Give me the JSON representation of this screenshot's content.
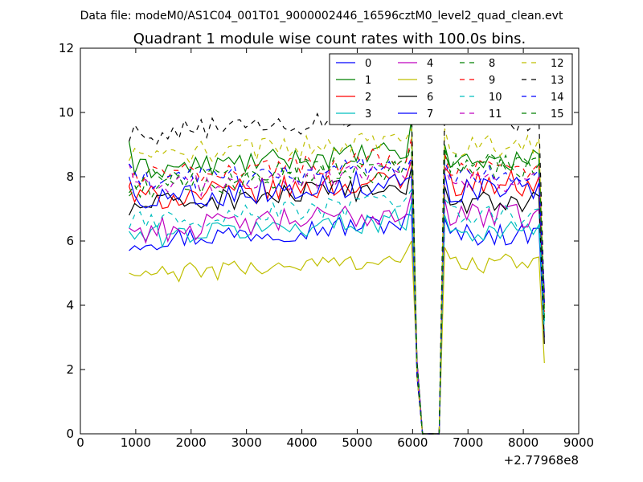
{
  "chart_data": {
    "type": "line",
    "suptitle": "Data file: modeM0/AS1C04_001T01_9000002446_16596cztM0_level2_quad_clean.evt",
    "title": "Quadrant 1 module wise count rates with 100.0s bins.",
    "xlabel": "",
    "ylabel": "",
    "x_offset_label": "+2.77968e8",
    "xlim": [
      0,
      9000
    ],
    "ylim": [
      0,
      12
    ],
    "xticks": [
      0,
      1000,
      2000,
      3000,
      4000,
      5000,
      6000,
      7000,
      8000,
      9000
    ],
    "yticks": [
      0,
      2,
      4,
      6,
      8,
      10,
      12
    ],
    "xtick_labels": [
      "0",
      "1000",
      "2000",
      "3000",
      "4000",
      "5000",
      "6000",
      "7000",
      "8000",
      "9000"
    ],
    "ytick_labels": [
      "0",
      "2",
      "4",
      "6",
      "8",
      "10",
      "12"
    ],
    "grid": false,
    "legend_position": "top-right",
    "x_start": 880,
    "x_step": 100,
    "gap": {
      "drop_x": 6080,
      "zero_start_x": 6180,
      "zero_end_x": 6480,
      "rise_x": 6580
    },
    "x_end": 8380,
    "series": [
      {
        "name": "0",
        "color": "#0000ff",
        "dash": "solid",
        "mean_before": 6.3,
        "amp": 0.35,
        "end_before": 6.8,
        "first": 5.7,
        "mean_after": 6.2,
        "last": 3.0
      },
      {
        "name": "1",
        "color": "#008000",
        "dash": "solid",
        "mean_before": 8.5,
        "amp": 0.35,
        "end_before": 9.8,
        "first": 9.1,
        "mean_after": 8.5,
        "last": 3.5
      },
      {
        "name": "2",
        "color": "#ff0000",
        "dash": "solid",
        "mean_before": 7.6,
        "amp": 0.4,
        "end_before": 8.5,
        "first": 7.7,
        "mean_after": 7.8,
        "last": 4.0
      },
      {
        "name": "3",
        "color": "#00bfbf",
        "dash": "solid",
        "mean_before": 6.4,
        "amp": 0.35,
        "end_before": 7.2,
        "first": 6.3,
        "mean_after": 6.3,
        "last": 3.5
      },
      {
        "name": "4",
        "color": "#bf00bf",
        "dash": "solid",
        "mean_before": 6.6,
        "amp": 0.4,
        "end_before": 7.5,
        "first": 6.4,
        "mean_after": 6.8,
        "last": 4.0
      },
      {
        "name": "5",
        "color": "#bfbf00",
        "dash": "solid",
        "mean_before": 5.2,
        "amp": 0.3,
        "end_before": 6.0,
        "first": 5.0,
        "mean_after": 5.3,
        "last": 2.2
      },
      {
        "name": "6",
        "color": "#000000",
        "dash": "solid",
        "mean_before": 7.4,
        "amp": 0.35,
        "end_before": 8.3,
        "first": 6.8,
        "mean_after": 7.2,
        "last": 2.8
      },
      {
        "name": "7",
        "color": "#0000ff",
        "dash": "solid",
        "mean_before": 7.6,
        "amp": 0.4,
        "end_before": 8.0,
        "first": 8.0,
        "mean_after": 7.6,
        "last": 4.4
      },
      {
        "name": "8",
        "color": "#008000",
        "dash": "dashed",
        "mean_before": 7.9,
        "amp": 0.35,
        "end_before": 9.0,
        "first": 7.5,
        "mean_after": 8.2,
        "last": 3.6
      },
      {
        "name": "9",
        "color": "#ff0000",
        "dash": "dashed",
        "mean_before": 8.3,
        "amp": 0.35,
        "end_before": 9.2,
        "first": 7.7,
        "mean_after": 8.2,
        "last": 3.8
      },
      {
        "name": "10",
        "color": "#00bfbf",
        "dash": "dashed",
        "mean_before": 6.9,
        "amp": 0.35,
        "end_before": 7.6,
        "first": 6.4,
        "mean_after": 6.8,
        "last": 3.2
      },
      {
        "name": "11",
        "color": "#bf00bf",
        "dash": "dashed",
        "mean_before": 7.9,
        "amp": 0.35,
        "end_before": 8.6,
        "first": 8.4,
        "mean_after": 7.8,
        "last": 4.2
      },
      {
        "name": "12",
        "color": "#bfbf00",
        "dash": "dashed",
        "mean_before": 8.9,
        "amp": 0.35,
        "end_before": 9.5,
        "first": 8.5,
        "mean_after": 9.0,
        "last": 3.8
      },
      {
        "name": "13",
        "color": "#000000",
        "dash": "dashed",
        "mean_before": 9.6,
        "amp": 0.35,
        "end_before": 10.2,
        "first": 9.1,
        "mean_after": 9.7,
        "last": 4.0
      },
      {
        "name": "14",
        "color": "#0000ff",
        "dash": "dashed",
        "mean_before": 8.1,
        "amp": 0.35,
        "end_before": 8.6,
        "first": 8.4,
        "mean_after": 8.0,
        "last": 4.0
      },
      {
        "name": "15",
        "color": "#008000",
        "dash": "dashed",
        "mean_before": 8.2,
        "amp": 0.35,
        "end_before": 8.8,
        "first": 7.4,
        "mean_after": 8.4,
        "last": 3.8
      }
    ]
  }
}
